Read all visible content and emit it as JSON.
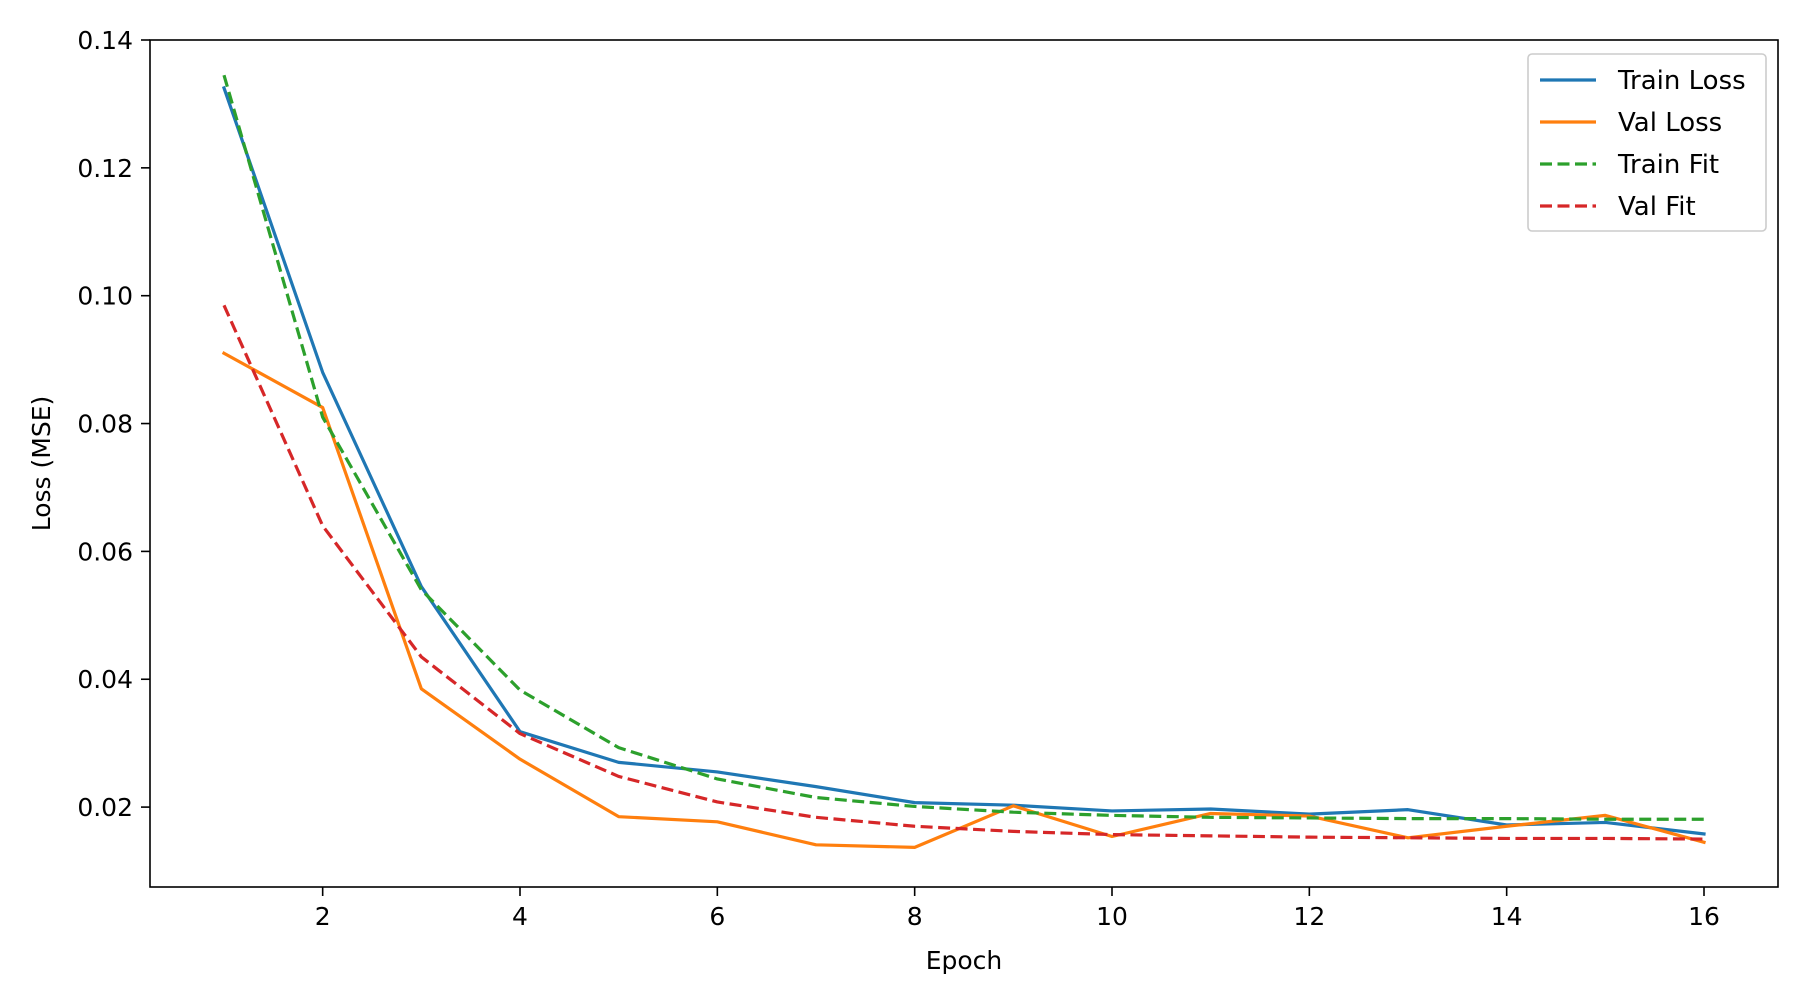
{
  "chart_data": {
    "type": "line",
    "title": "",
    "xlabel": "Epoch",
    "ylabel": "Loss (MSE)",
    "xlim": [
      0.25,
      16.75
    ],
    "ylim": [
      0.0075,
      0.14
    ],
    "x_ticks": [
      2,
      4,
      6,
      8,
      10,
      12,
      14,
      16
    ],
    "x_tick_labels": [
      "2",
      "4",
      "6",
      "8",
      "10",
      "12",
      "14",
      "16"
    ],
    "y_ticks": [
      0.02,
      0.04,
      0.06,
      0.08,
      0.1,
      0.12,
      0.14
    ],
    "y_tick_labels": [
      "0.02",
      "0.04",
      "0.06",
      "0.08",
      "0.10",
      "0.12",
      "0.14"
    ],
    "grid": false,
    "legend_position": "top-right",
    "x": [
      1,
      2,
      3,
      4,
      5,
      6,
      7,
      8,
      9,
      10,
      11,
      12,
      13,
      14,
      15,
      16
    ],
    "series": [
      {
        "name": "Train Loss",
        "color": "#1f77b4",
        "style": "solid",
        "values": [
          0.1325,
          0.088,
          0.0545,
          0.0318,
          0.027,
          0.0255,
          0.0232,
          0.0207,
          0.0203,
          0.0194,
          0.0197,
          0.0189,
          0.0196,
          0.0172,
          0.0176,
          0.0158
        ]
      },
      {
        "name": "Val Loss",
        "color": "#ff7f0e",
        "style": "solid",
        "values": [
          0.091,
          0.0825,
          0.0385,
          0.0275,
          0.0185,
          0.0177,
          0.0141,
          0.0137,
          0.0202,
          0.0154,
          0.019,
          0.0186,
          0.0152,
          0.017,
          0.0187,
          0.0145
        ]
      },
      {
        "name": "Train Fit",
        "color": "#2ca02c",
        "style": "dashed",
        "values": [
          0.1345,
          0.081,
          0.054,
          0.0383,
          0.0293,
          0.0244,
          0.0215,
          0.0201,
          0.0192,
          0.0187,
          0.0184,
          0.0183,
          0.0182,
          0.0182,
          0.0181,
          0.0181
        ]
      },
      {
        "name": "Val Fit",
        "color": "#d62728",
        "style": "dashed",
        "values": [
          0.0985,
          0.064,
          0.0435,
          0.0315,
          0.0248,
          0.0208,
          0.0184,
          0.017,
          0.0162,
          0.0157,
          0.0155,
          0.0153,
          0.0152,
          0.0151,
          0.0151,
          0.015
        ]
      }
    ]
  }
}
